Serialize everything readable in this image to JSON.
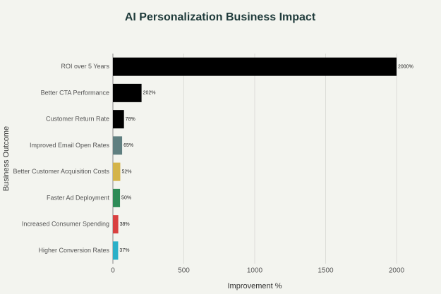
{
  "chart_data": {
    "type": "barh",
    "title": "AI Personalization Business Impact",
    "xlabel": "Improvement %",
    "ylabel": "Business Outcome",
    "categories": [
      "ROI over 5 Years",
      "Better CTA Performance",
      "Customer Return Rate",
      "Improved Email Open Rates",
      "Better Customer Acquisition Costs",
      "Faster Ad Deployment",
      "Increased Consumer Spending",
      "Higher Conversion Rates"
    ],
    "values": [
      2000,
      202,
      78,
      65,
      52,
      50,
      38,
      37
    ],
    "value_labels": [
      "2000%",
      "202%",
      "78%",
      "65%",
      "52%",
      "50%",
      "38%",
      "37%"
    ],
    "colors": [
      "#000000",
      "#000000",
      "#000000",
      "#5f7f80",
      "#d4b44a",
      "#2e8b57",
      "#d94040",
      "#2ab0c8"
    ],
    "xlim": [
      0,
      2000
    ],
    "xticks": [
      0,
      500,
      1000,
      1500,
      2000
    ],
    "grid": true
  }
}
